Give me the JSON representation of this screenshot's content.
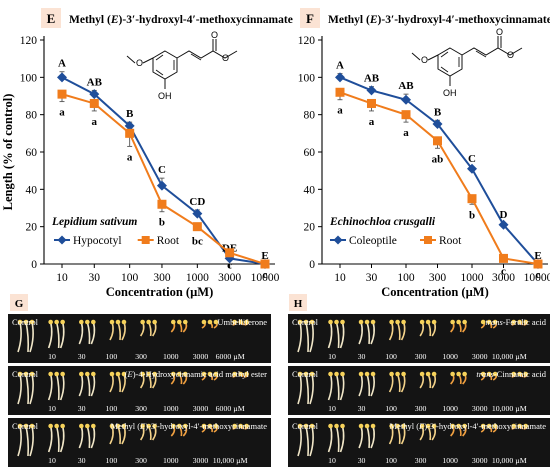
{
  "chart_data": [
    {
      "type": "line",
      "panel": "E",
      "title": "Methyl (E)-3′-hydroxyl-4′-methoxycinnamate",
      "species": "Lepidium sativum",
      "xlabel": "Concentration (µM)",
      "ylabel": "Length (% of control)",
      "x_scale": "log",
      "x": [
        10,
        30,
        100,
        300,
        1000,
        3000,
        10000
      ],
      "x_tick_labels": [
        "10",
        "30",
        "100",
        "300",
        "1000",
        "3000",
        "10000"
      ],
      "ylim": [
        0,
        120
      ],
      "y_ticks": [
        0,
        20,
        40,
        60,
        80,
        100,
        120
      ],
      "grid": false,
      "legend": "bottom-left",
      "series": [
        {
          "name": "Hypocotyl",
          "color": "#1f4e9a",
          "marker": "diamond",
          "values": [
            100,
            91,
            74,
            42,
            27,
            3,
            0
          ],
          "errors": [
            3,
            2,
            2,
            4,
            2,
            1,
            0
          ],
          "letters": [
            "A",
            "AB",
            "B",
            "C",
            "CD",
            "DE",
            "E"
          ]
        },
        {
          "name": "Root",
          "color": "#f07c1c",
          "marker": "square",
          "values": [
            91,
            86,
            70,
            32,
            20,
            6,
            0
          ],
          "errors": [
            4,
            4,
            7,
            4,
            2,
            1,
            0
          ],
          "letters": [
            "a",
            "a",
            "a",
            "b",
            "bc",
            "c",
            "c"
          ]
        }
      ]
    },
    {
      "type": "line",
      "panel": "F",
      "title": "Methyl (E)-3′-hydroxyl-4′-methoxycinnamate",
      "species": "Echinochloa crusgalli",
      "xlabel": "Concentration (µM)",
      "ylabel": "Length (% of control)",
      "x_scale": "log",
      "x": [
        10,
        30,
        100,
        300,
        1000,
        3000,
        10000
      ],
      "x_tick_labels": [
        "10",
        "30",
        "100",
        "300",
        "1000",
        "3000",
        "10000"
      ],
      "ylim": [
        0,
        120
      ],
      "y_ticks": [
        0,
        20,
        40,
        60,
        80,
        100,
        120
      ],
      "grid": false,
      "legend": "bottom-left",
      "series": [
        {
          "name": "Coleoptile",
          "color": "#1f4e9a",
          "marker": "diamond",
          "values": [
            100,
            93,
            88,
            75,
            51,
            21,
            0
          ],
          "errors": [
            2,
            2,
            3,
            2,
            1,
            1,
            0
          ],
          "letters": [
            "A",
            "AB",
            "AB",
            "B",
            "C",
            "D",
            "E"
          ]
        },
        {
          "name": "Root",
          "color": "#f07c1c",
          "marker": "square",
          "values": [
            92,
            86,
            80,
            66,
            35,
            3,
            0
          ],
          "errors": [
            4,
            4,
            4,
            4,
            3,
            1,
            0
          ],
          "letters": [
            "a",
            "a",
            "a",
            "ab",
            "b",
            "c",
            "c"
          ]
        }
      ]
    }
  ],
  "photos": {
    "G": {
      "tag": "G",
      "strips": [
        {
          "name": "Umbelliferone",
          "control": "Control",
          "labels": [
            "10",
            "30",
            "100",
            "300",
            "1000",
            "3000",
            "6000 µM"
          ]
        },
        {
          "name": "(E)-4-Hydroxycinnamic acid methyl ester",
          "control": "Control",
          "labels": [
            "10",
            "30",
            "100",
            "300",
            "1000",
            "3000",
            "6000 µM"
          ]
        },
        {
          "name": "Methyl (E)-3′-hydroxyl-4′-methoxycinnamate",
          "control": "Control",
          "labels": [
            "10",
            "30",
            "100",
            "300",
            "1000",
            "3000",
            "10,000 µM"
          ]
        }
      ]
    },
    "H": {
      "tag": "H",
      "strips": [
        {
          "name": "trans-Ferulic acid",
          "control": "Control",
          "labels": [
            "10",
            "30",
            "100",
            "300",
            "1000",
            "3000",
            "10,000 µM"
          ]
        },
        {
          "name": "trans-Cinnamic acid",
          "control": "Control",
          "labels": [
            "10",
            "30",
            "100",
            "300",
            "1000",
            "3000",
            "10,000 µM"
          ]
        },
        {
          "name": "Methyl (E)-3′-hydroxyl-4′-methoxycinnamate",
          "control": "Control",
          "labels": [
            "10",
            "30",
            "100",
            "300",
            "1000",
            "3000",
            "10,000 µM"
          ]
        }
      ]
    }
  }
}
